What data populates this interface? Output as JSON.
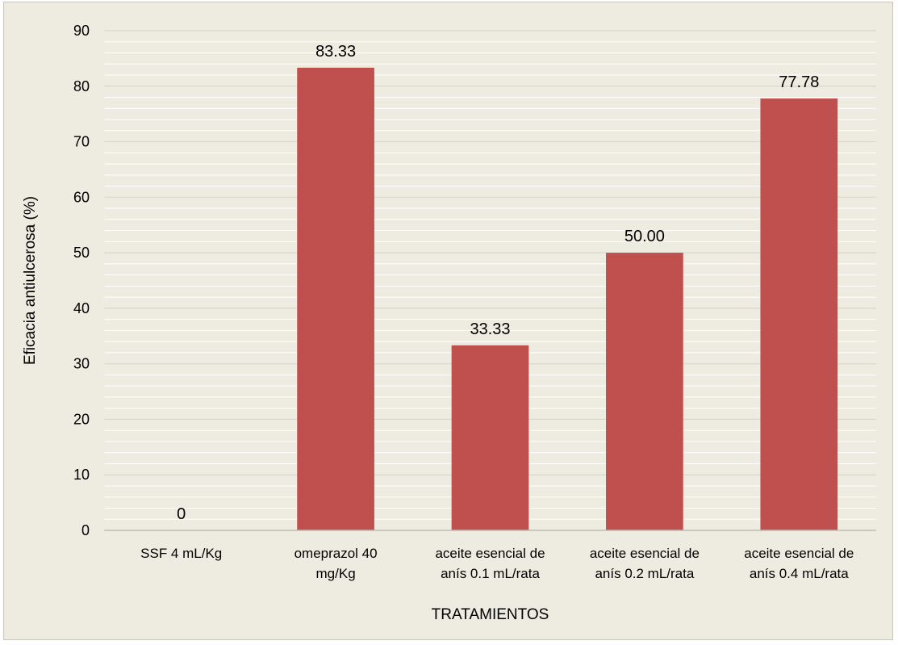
{
  "chart_data": {
    "type": "bar",
    "categories": [
      [
        "SSF 4 mL/Kg"
      ],
      [
        "omeprazol 40",
        "mg/Kg"
      ],
      [
        "aceite esencial de",
        "anís 0.1 mL/rata"
      ],
      [
        "aceite esencial de",
        "anís 0.2 mL/rata"
      ],
      [
        "aceite esencial de",
        "anís 0.4 mL/rata"
      ]
    ],
    "values": [
      0,
      83.33,
      33.33,
      50.0,
      77.78
    ],
    "data_labels": [
      "0",
      "83.33",
      "33.33",
      "50.00",
      "77.78"
    ],
    "xlabel": "TRATAMIENTOS",
    "ylabel": "Eficacia antiulcerosa (%)",
    "ylim": [
      0,
      90
    ],
    "yticks": [
      0,
      10,
      20,
      30,
      40,
      50,
      60,
      70,
      80,
      90
    ],
    "minor_gridlines_per_major": 5,
    "grid": true,
    "legend": "none",
    "colors": {
      "bar": "#c0504d",
      "background": "#eeece1",
      "gridline": "#ffffff"
    }
  }
}
